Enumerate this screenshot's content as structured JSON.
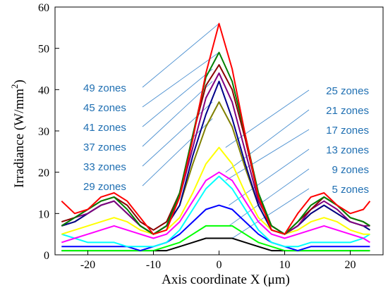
{
  "chart_data": {
    "type": "line",
    "xlabel": "Axis coordinate X (μm)",
    "ylabel_main": "Irradiance (W/mm",
    "ylabel_sup": "2",
    "ylabel_close": ")",
    "xlim": [
      -25,
      25
    ],
    "ylim": [
      0,
      60
    ],
    "xticks": [
      -20,
      -10,
      0,
      10,
      20
    ],
    "xtick_labels": [
      "-20",
      "-10",
      "0",
      "10",
      "20"
    ],
    "yticks": [
      0,
      10,
      20,
      30,
      40,
      50,
      60
    ],
    "ytick_labels": [
      "0",
      "10",
      "20",
      "30",
      "40",
      "50",
      "60"
    ],
    "grid": false,
    "x": [
      -24,
      -22,
      -20,
      -18,
      -16,
      -14,
      -12,
      -10,
      -8,
      -6,
      -4,
      -2,
      0,
      2,
      4,
      6,
      8,
      10,
      12,
      14,
      16,
      18,
      20,
      22,
      23
    ],
    "series": [
      {
        "name": "49 zones",
        "color": "#ff0000",
        "values": [
          13,
          10,
          11,
          14,
          15,
          13,
          9,
          5,
          6,
          14,
          28,
          44,
          56,
          45,
          29,
          14,
          6,
          5,
          10,
          14,
          15,
          12,
          10,
          11,
          13
        ]
      },
      {
        "name": "45 zones",
        "color": "#008000",
        "values": [
          7,
          9,
          11,
          13,
          14,
          11,
          7,
          5,
          7,
          15,
          29,
          43,
          49,
          42,
          29,
          15,
          7,
          5,
          8,
          12,
          14,
          12,
          9,
          8,
          7
        ]
      },
      {
        "name": "41 zones",
        "color": "#8b0000",
        "values": [
          8,
          9,
          11,
          13,
          14,
          12,
          8,
          6,
          8,
          15,
          29,
          41,
          46,
          40,
          28,
          14,
          7,
          5,
          8,
          11,
          14,
          12,
          9,
          8,
          7
        ]
      },
      {
        "name": "37 zones",
        "color": "#800080",
        "values": [
          7,
          9,
          10,
          12,
          13,
          10,
          7,
          5,
          7,
          14,
          26,
          38,
          44,
          37,
          25,
          13,
          7,
          5,
          7,
          11,
          13,
          11,
          8,
          7,
          7
        ]
      },
      {
        "name": "33 zones",
        "color": "#00008b",
        "values": [
          7,
          8,
          10,
          12,
          13,
          10,
          7,
          5,
          7,
          12,
          24,
          34,
          42,
          33,
          22,
          12,
          6,
          5,
          7,
          10,
          12,
          10,
          8,
          7,
          6
        ]
      },
      {
        "name": "29 zones",
        "color": "#808000",
        "values": [
          7,
          8,
          10,
          12,
          13,
          10,
          7,
          5,
          7,
          12,
          22,
          31,
          37,
          31,
          21,
          12,
          6,
          5,
          7,
          10,
          12,
          10,
          8,
          7,
          6
        ]
      },
      {
        "name": "25 zones",
        "color": "#ffff00",
        "values": [
          5,
          6,
          7,
          8,
          9,
          8,
          6,
          5,
          6,
          9,
          15,
          22,
          26,
          22,
          15,
          9,
          6,
          5,
          6,
          8,
          9,
          8,
          6,
          5,
          5
        ]
      },
      {
        "name": "21 zones",
        "color": "#ff00ff",
        "values": [
          3,
          4,
          5,
          6,
          7,
          6,
          5,
          4,
          5,
          8,
          13,
          18,
          20,
          18,
          13,
          8,
          5,
          4,
          5,
          6,
          7,
          6,
          5,
          4,
          3
        ]
      },
      {
        "name": "17 zones",
        "color": "#00ffff",
        "values": [
          5,
          4,
          3,
          3,
          3,
          2,
          2,
          2,
          3,
          6,
          11,
          16,
          19,
          16,
          11,
          6,
          3,
          2,
          2,
          3,
          3,
          3,
          3,
          4,
          5
        ]
      },
      {
        "name": "13 zones",
        "color": "#0000ff",
        "values": [
          2,
          2,
          2,
          2,
          2,
          2,
          1,
          2,
          3,
          5,
          8,
          11,
          12,
          11,
          8,
          5,
          3,
          2,
          1,
          2,
          2,
          2,
          2,
          2,
          2
        ]
      },
      {
        "name": "9 zones",
        "color": "#00ff00",
        "values": [
          1,
          1,
          1,
          1,
          1,
          1,
          1,
          1,
          2,
          3,
          5,
          7,
          7,
          7,
          5,
          3,
          2,
          1,
          1,
          1,
          1,
          1,
          1,
          1,
          1
        ]
      },
      {
        "name": "5 zones",
        "color": "#000000",
        "values": [
          1,
          1,
          1,
          1,
          1,
          1,
          1,
          1,
          1,
          2,
          3,
          4,
          4,
          4,
          3,
          2,
          1,
          1,
          1,
          1,
          1,
          1,
          1,
          1,
          1
        ]
      }
    ],
    "annotations_left": [
      "49 zones",
      "45 zones",
      "41 zones",
      "37 zones",
      "33 zones",
      "29 zones"
    ],
    "annotations_right": [
      "25 zones",
      "21 zones",
      "17 zones",
      "13 zones",
      "9 zones",
      "5 zones"
    ]
  }
}
